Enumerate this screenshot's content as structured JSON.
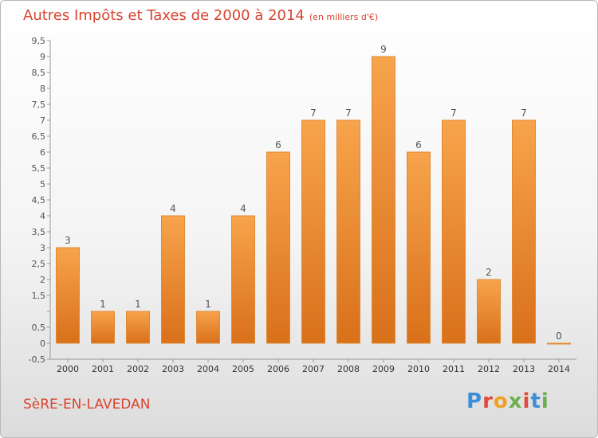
{
  "header": {
    "title": "Autres Impôts et Taxes de 2000 à 2014",
    "subtitle": "(en milliers d'€)"
  },
  "footer": {
    "commune": "SèRE-EN-LAVEDAN",
    "logo": "Proxiti"
  },
  "colors": {
    "accent": "#d9442e",
    "bar_top": "#f7a44c",
    "bar_bottom": "#d9701a",
    "logo_letters": [
      "#3a8fd8",
      "#e04a3a",
      "#f0a020",
      "#6ab04c",
      "#e04a3a",
      "#3a8fd8",
      "#6ab04c"
    ]
  },
  "chart_data": {
    "type": "bar",
    "categories": [
      "2000",
      "2001",
      "2002",
      "2003",
      "2004",
      "2005",
      "2006",
      "2007",
      "2008",
      "2009",
      "2010",
      "2011",
      "2012",
      "2013",
      "2014"
    ],
    "values": [
      3,
      1,
      1,
      4,
      1,
      4,
      6,
      7,
      7,
      9,
      6,
      7,
      2,
      7,
      0
    ],
    "data_labels": [
      "3",
      "1",
      "1",
      "4",
      "1",
      "4",
      "6",
      "7",
      "7",
      "9",
      "6",
      "7",
      "2",
      "7",
      "0"
    ],
    "ylim": [
      -0.5,
      9.5
    ],
    "yticks": [
      -0.5,
      0,
      0.5,
      1,
      1.5,
      2,
      2.5,
      3,
      3.5,
      4,
      4.5,
      5,
      5.5,
      6,
      6.5,
      7,
      7.5,
      8,
      8.5,
      9,
      9.5
    ],
    "ytick_labels": [
      "-0,5",
      "0",
      "0,5",
      "",
      "1,5",
      "2",
      "2,5",
      "3",
      "3,5",
      "4",
      "4,5",
      "5",
      "5,5",
      "6",
      "6,5",
      "7",
      "7,5",
      "8",
      "8,5",
      "9",
      "9,5"
    ],
    "grid": false,
    "xlabel": "",
    "ylabel": ""
  }
}
